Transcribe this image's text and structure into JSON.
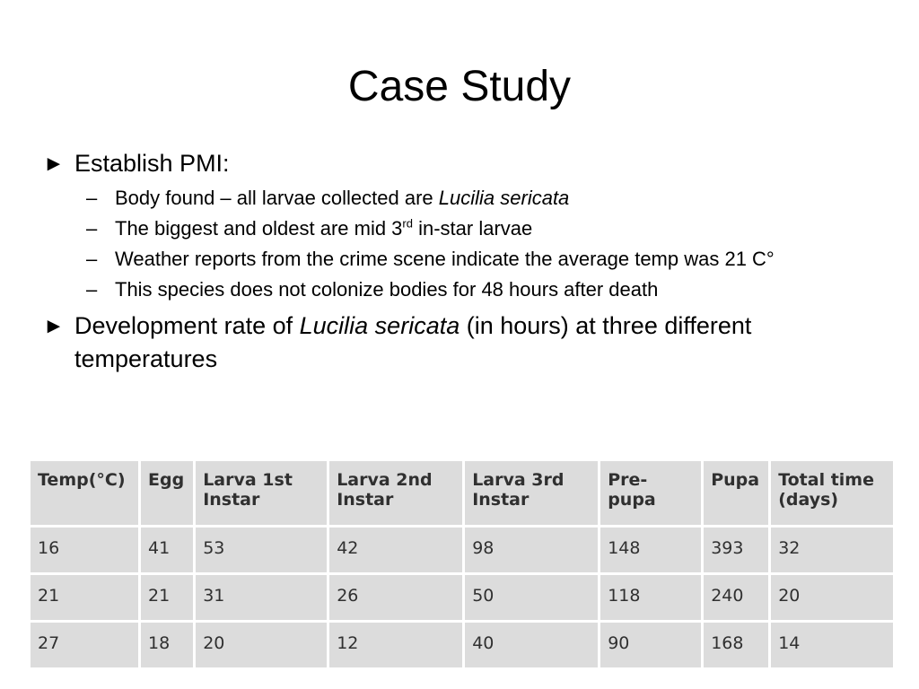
{
  "title": "Case Study",
  "bullets": [
    {
      "marker": "►",
      "text": "Establish PMI:",
      "sub": [
        {
          "prefix": "Body found – all larvae collected are ",
          "italic": "Lucilia sericata"
        },
        {
          "prefix": "The biggest and oldest are mid 3",
          "sup": "rd",
          "suffix": " in-star larvae"
        },
        {
          "text": "Weather reports from the crime scene indicate the average temp was 21 C°"
        },
        {
          "text": "This species does not colonize bodies for 48 hours after death"
        }
      ]
    },
    {
      "marker": "►",
      "prefix": "Development rate of ",
      "italic": "Lucilia sericata",
      "suffix": " (in hours) at three different temperatures"
    }
  ],
  "dash": "–",
  "table": {
    "headers": [
      "Temp(°C)",
      "Egg",
      "Larva 1st Instar",
      "Larva 2nd Instar",
      "Larva 3rd Instar",
      "Pre-pupa",
      "Pupa",
      "Total time (days)"
    ],
    "rows": [
      [
        "16",
        "41",
        "53",
        "42",
        "98",
        "148",
        "393",
        "32"
      ],
      [
        "21",
        "21",
        "31",
        "26",
        "50",
        "118",
        "240",
        "20"
      ],
      [
        "27",
        "18",
        "20",
        "12",
        "40",
        "90",
        "168",
        "14"
      ]
    ]
  }
}
